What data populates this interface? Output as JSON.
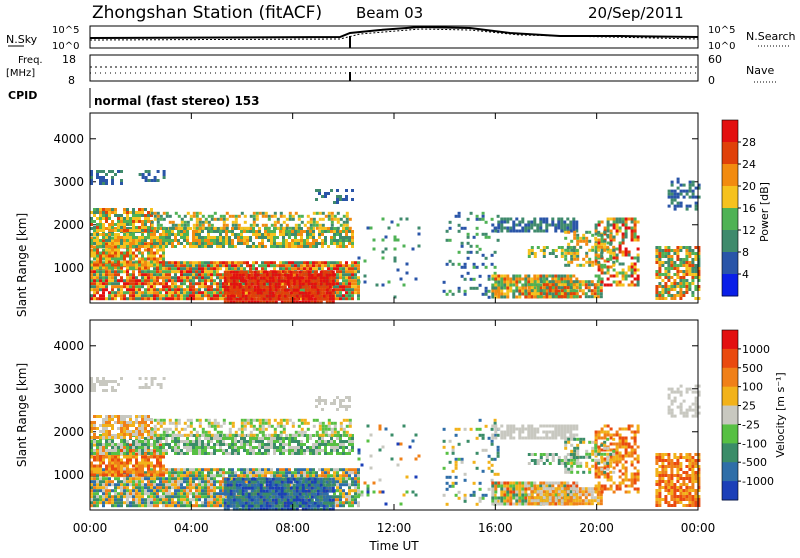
{
  "header": {
    "station": "Zhongshan Station (fitACF)",
    "beam": "Beam 03",
    "date": "20/Sep/2011"
  },
  "noise_panel": {
    "left_label": "N.Sky",
    "right_label": "N.Search",
    "ticks": [
      "10^5",
      "10^0"
    ]
  },
  "freq_panel": {
    "left_label_1": "Freq.",
    "left_label_2": "[MHz]",
    "left_ticks": [
      "18",
      "8"
    ],
    "right_label": "Nave",
    "right_ticks": [
      "60",
      "0"
    ]
  },
  "cpid_panel": {
    "label": "CPID",
    "program": "normal (fast stereo) 153"
  },
  "x_axis": {
    "title": "Time UT",
    "ticks": [
      "00:00",
      "04:00",
      "08:00",
      "12:00",
      "16:00",
      "20:00",
      "00:00"
    ]
  },
  "chart_data": [
    {
      "type": "heatmap",
      "title": "",
      "xlabel": "Time UT",
      "ylabel": "Slant Range [km]",
      "ylim": [
        180,
        4600
      ],
      "y_ticks": [
        "1000",
        "2000",
        "3000",
        "4000"
      ],
      "colorbar": {
        "label": "Power [dB]",
        "ticks": [
          "4",
          "8",
          "12",
          "16",
          "20",
          "24",
          "28"
        ],
        "colors": [
          "#0a1fe8",
          "#2a55a8",
          "#3f8a6c",
          "#4fb255",
          "#f6c21e",
          "#f28b10",
          "#e0410a",
          "#e31010"
        ]
      }
    },
    {
      "type": "heatmap",
      "title": "",
      "xlabel": "Time UT",
      "ylabel": "Slant Range [km]",
      "ylim": [
        180,
        4600
      ],
      "y_ticks": [
        "1000",
        "2000",
        "3000",
        "4000"
      ],
      "colorbar": {
        "label": "Velocity [m s⁻¹]",
        "ticks": [
          "1000",
          "500",
          "100",
          "25",
          "-25",
          "-100",
          "-500",
          "-1000"
        ],
        "colors": [
          "#1b3fb8",
          "#2f6ea8",
          "#3a8c68",
          "#57c043",
          "#c8c8c0",
          "#f2b21a",
          "#f08018",
          "#ea4a0f",
          "#e31010"
        ]
      }
    }
  ]
}
